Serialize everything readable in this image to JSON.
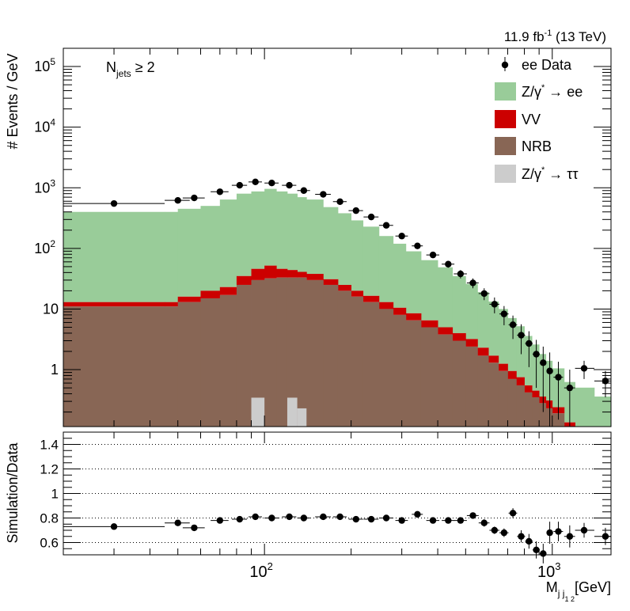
{
  "header": {
    "lumi_main": "11.9 fb",
    "lumi_sup": "-1",
    "lumi_tail": " (13 TeV)"
  },
  "selection": {
    "base": "N",
    "sub": "jets",
    "rest": " ≥ 2"
  },
  "legend": [
    {
      "key": "data",
      "label": "ee Data",
      "color": "#000000",
      "marker": "point"
    },
    {
      "key": "zee",
      "label_main": "Z/γ",
      "label_sup": "*",
      "label_tail": " → ee",
      "color": "#99cc99",
      "marker": "box"
    },
    {
      "key": "vv",
      "label": "VV",
      "color": "#cc0000",
      "marker": "box"
    },
    {
      "key": "nrb",
      "label": "NRB",
      "color": "#886655",
      "marker": "box"
    },
    {
      "key": "ztt",
      "label_main": "Z/γ",
      "label_sup": "*",
      "label_tail": " → ττ",
      "color": "#cccccc",
      "marker": "box"
    }
  ],
  "axes": {
    "top_ylabel": "# Events / GeV",
    "bottom_ylabel": "Simulation/Data",
    "xlabel_main": "M",
    "xlabel_sub": "j j",
    "xlabel_subsub": "1 2",
    "xlabel_unit": "[GeV]",
    "x_range": [
      20,
      1600
    ],
    "x_scale": "log",
    "x_tick_labels": [
      {
        "value": 100,
        "base": "10",
        "exp": "2"
      },
      {
        "value": 1000,
        "base": "10",
        "exp": "3"
      }
    ],
    "top_y_range": [
      0.115,
      200000
    ],
    "top_y_scale": "log",
    "top_y_tick_labels": [
      {
        "value": 1,
        "base": "1",
        "exp": ""
      },
      {
        "value": 10,
        "base": "10",
        "exp": ""
      },
      {
        "value": 100,
        "base": "10",
        "exp": "2"
      },
      {
        "value": 1000,
        "base": "10",
        "exp": "3"
      },
      {
        "value": 10000,
        "base": "10",
        "exp": "4"
      },
      {
        "value": 100000,
        "base": "10",
        "exp": "5"
      }
    ],
    "ratio_y_range": [
      0.5,
      1.5
    ],
    "ratio_y_ticks": [
      "1.4",
      "1.2",
      "1",
      "0.8",
      "0.6"
    ],
    "ratio_grid": "dotted"
  },
  "chart_data": [
    {
      "type": "bar",
      "stacked": true,
      "bin_edges": [
        20,
        45,
        50,
        60,
        70,
        80,
        90,
        100,
        110,
        120,
        130,
        140,
        160,
        180,
        200,
        220,
        250,
        280,
        310,
        350,
        400,
        450,
        500,
        550,
        600,
        650,
        700,
        750,
        800,
        850,
        900,
        950,
        1000,
        1100,
        1200,
        1400,
        1600
      ],
      "series": [
        {
          "name": "NRB",
          "values": [
            11,
            11,
            13,
            15,
            17,
            25,
            30,
            32,
            33,
            33,
            33,
            30,
            25,
            20,
            16,
            13,
            10,
            8,
            6.5,
            5,
            3.8,
            3,
            2.4,
            1.7,
            1.3,
            0.95,
            0.7,
            0.55,
            0.42,
            0.35,
            0.28,
            0.23,
            0.19,
            0.115,
            0.115,
            0.115
          ]
        },
        {
          "name": "VV",
          "values": [
            2,
            2,
            3,
            5,
            6,
            10,
            16,
            20,
            13,
            11,
            8,
            8,
            6,
            5,
            4,
            3.5,
            3,
            2.5,
            2,
            1.5,
            1.2,
            1,
            0.8,
            0.6,
            0.4,
            0.3,
            0.25,
            0.2,
            0.13,
            0.1,
            0.08,
            0.08,
            0.05,
            0.02,
            0,
            0
          ]
        },
        {
          "name": "Z/γ* → ee",
          "values": [
            387,
            387,
            434,
            482,
            617,
            765,
            824,
            908,
            824,
            756,
            659,
            602,
            449,
            355,
            270,
            212,
            147,
            109,
            81,
            57.5,
            43.8,
            31,
            22.8,
            16.7,
            11.6,
            8.75,
            6.15,
            4.45,
            3.05,
            2.15,
            1.45,
            1.09,
            0.81,
            0.49,
            0.39,
            0.245
          ]
        },
        {
          "name": "Z/γ* → ττ",
          "values": [
            0,
            0,
            0,
            0,
            0,
            0,
            0.1,
            0,
            0,
            0.1,
            0.05,
            0,
            0,
            0,
            0,
            0,
            0,
            0,
            0,
            0,
            0,
            0,
            0,
            0,
            0,
            0,
            0,
            0,
            0,
            0,
            0,
            0,
            0,
            0,
            0,
            0
          ]
        }
      ],
      "data": {
        "name": "ee Data",
        "x": [
          30,
          50,
          57,
          70,
          82,
          93,
          106,
          122,
          137,
          160,
          183,
          208,
          235,
          265,
          300,
          340,
          385,
          435,
          480,
          530,
          580,
          630,
          680,
          730,
          780,
          830,
          880,
          930,
          980,
          1050,
          1150,
          1290,
          1530
        ],
        "xerr": [
          [
            10,
            15
          ],
          [
            5,
            5
          ],
          [
            5,
            5
          ],
          [
            5,
            5
          ],
          [
            5,
            5
          ],
          [
            5,
            5
          ],
          [
            6,
            6
          ],
          [
            7,
            7
          ],
          [
            7,
            7
          ],
          [
            10,
            10
          ],
          [
            10,
            10
          ],
          [
            12,
            12
          ],
          [
            14,
            14
          ],
          [
            15,
            15
          ],
          [
            15,
            15
          ],
          [
            15,
            15
          ],
          [
            20,
            20
          ],
          [
            22,
            22
          ],
          [
            25,
            25
          ],
          [
            25,
            25
          ],
          [
            25,
            25
          ],
          [
            25,
            25
          ],
          [
            25,
            25
          ],
          [
            25,
            25
          ],
          [
            25,
            25
          ],
          [
            25,
            25
          ],
          [
            25,
            25
          ],
          [
            25,
            25
          ],
          [
            25,
            25
          ],
          [
            40,
            40
          ],
          [
            50,
            50
          ],
          [
            90,
            110
          ],
          [
            130,
            70
          ]
        ],
        "y": [
          550,
          620,
          680,
          860,
          1100,
          1250,
          1200,
          1100,
          900,
          780,
          590,
          420,
          330,
          240,
          160,
          110,
          78,
          55,
          38,
          27,
          18,
          12,
          8.3,
          5.5,
          3.7,
          2.7,
          1.8,
          1.3,
          0.95,
          0.75,
          0.5,
          1.05,
          0.65
        ],
        "yerr": [
          20,
          25,
          25,
          30,
          35,
          35,
          35,
          33,
          30,
          28,
          24,
          20,
          18,
          15,
          12,
          10,
          8,
          7,
          6,
          5,
          4,
          3.5,
          2.9,
          2.3,
          1.9,
          1.6,
          1.3,
          1.1,
          0.97,
          0.6,
          0.5,
          0.35,
          0.3
        ]
      }
    },
    {
      "type": "scatter",
      "name": "Simulation/Data",
      "x": [
        30,
        50,
        57,
        70,
        82,
        93,
        106,
        122,
        137,
        160,
        183,
        208,
        235,
        265,
        300,
        340,
        385,
        435,
        480,
        530,
        580,
        630,
        680,
        730,
        780,
        830,
        880,
        930,
        980,
        1050,
        1150,
        1290,
        1530
      ],
      "xerr": [
        [
          10,
          15
        ],
        [
          5,
          5
        ],
        [
          5,
          5
        ],
        [
          5,
          5
        ],
        [
          5,
          5
        ],
        [
          5,
          5
        ],
        [
          6,
          6
        ],
        [
          7,
          7
        ],
        [
          7,
          7
        ],
        [
          10,
          10
        ],
        [
          10,
          10
        ],
        [
          12,
          12
        ],
        [
          14,
          14
        ],
        [
          15,
          15
        ],
        [
          15,
          15
        ],
        [
          15,
          15
        ],
        [
          20,
          20
        ],
        [
          22,
          22
        ],
        [
          25,
          25
        ],
        [
          25,
          25
        ],
        [
          25,
          25
        ],
        [
          25,
          25
        ],
        [
          25,
          25
        ],
        [
          25,
          25
        ],
        [
          25,
          25
        ],
        [
          25,
          25
        ],
        [
          25,
          25
        ],
        [
          25,
          25
        ],
        [
          25,
          25
        ],
        [
          40,
          40
        ],
        [
          50,
          50
        ],
        [
          90,
          110
        ],
        [
          130,
          70
        ]
      ],
      "y": [
        0.73,
        0.76,
        0.72,
        0.78,
        0.79,
        0.81,
        0.8,
        0.81,
        0.8,
        0.81,
        0.81,
        0.79,
        0.79,
        0.8,
        0.78,
        0.83,
        0.78,
        0.78,
        0.78,
        0.82,
        0.76,
        0.7,
        0.68,
        0.84,
        0.65,
        0.61,
        0.54,
        0.51,
        0.68,
        0.69,
        0.65,
        0.7,
        0.65
      ],
      "yerr": [
        0.01,
        0.01,
        0.01,
        0.01,
        0.01,
        0.01,
        0.01,
        0.01,
        0.01,
        0.01,
        0.01,
        0.01,
        0.01,
        0.01,
        0.01,
        0.01,
        0.015,
        0.015,
        0.02,
        0.025,
        0.03,
        0.03,
        0.035,
        0.04,
        0.05,
        0.06,
        0.07,
        0.08,
        0.09,
        0.08,
        0.09,
        0.06,
        0.07
      ]
    }
  ]
}
